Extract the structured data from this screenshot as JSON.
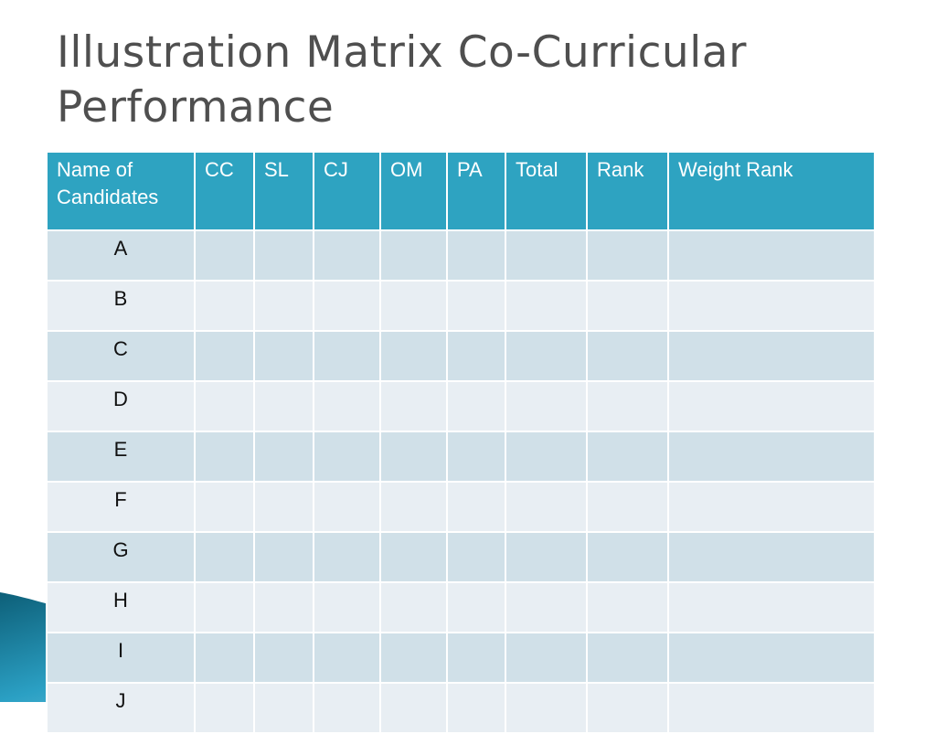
{
  "slide": {
    "title": "Illustration Matrix Co-Curricular Performance"
  },
  "table": {
    "headers": [
      "Name of Candidates",
      "CC",
      "SL",
      "CJ",
      "OM",
      "PA",
      "Total",
      "Rank",
      "Weight Rank"
    ],
    "rows": [
      [
        "A",
        "",
        "",
        "",
        "",
        "",
        "",
        "",
        ""
      ],
      [
        "B",
        "",
        "",
        "",
        "",
        "",
        "",
        "",
        ""
      ],
      [
        "C",
        "",
        "",
        "",
        "",
        "",
        "",
        "",
        ""
      ],
      [
        "D",
        "",
        "",
        "",
        "",
        "",
        "",
        "",
        ""
      ],
      [
        "E",
        "",
        "",
        "",
        "",
        "",
        "",
        "",
        ""
      ],
      [
        "F",
        "",
        "",
        "",
        "",
        "",
        "",
        "",
        ""
      ],
      [
        "G",
        "",
        "",
        "",
        "",
        "",
        "",
        "",
        ""
      ],
      [
        "H",
        "",
        "",
        "",
        "",
        "",
        "",
        "",
        ""
      ],
      [
        "I",
        "",
        "",
        "",
        "",
        "",
        "",
        "",
        ""
      ],
      [
        "J",
        "",
        "",
        "",
        "",
        "",
        "",
        "",
        ""
      ]
    ]
  },
  "colors": {
    "header": "#2ea3c1",
    "row_odd": "#d0e0e8",
    "row_even": "#e8eef3",
    "title": "#4f4f4f"
  }
}
